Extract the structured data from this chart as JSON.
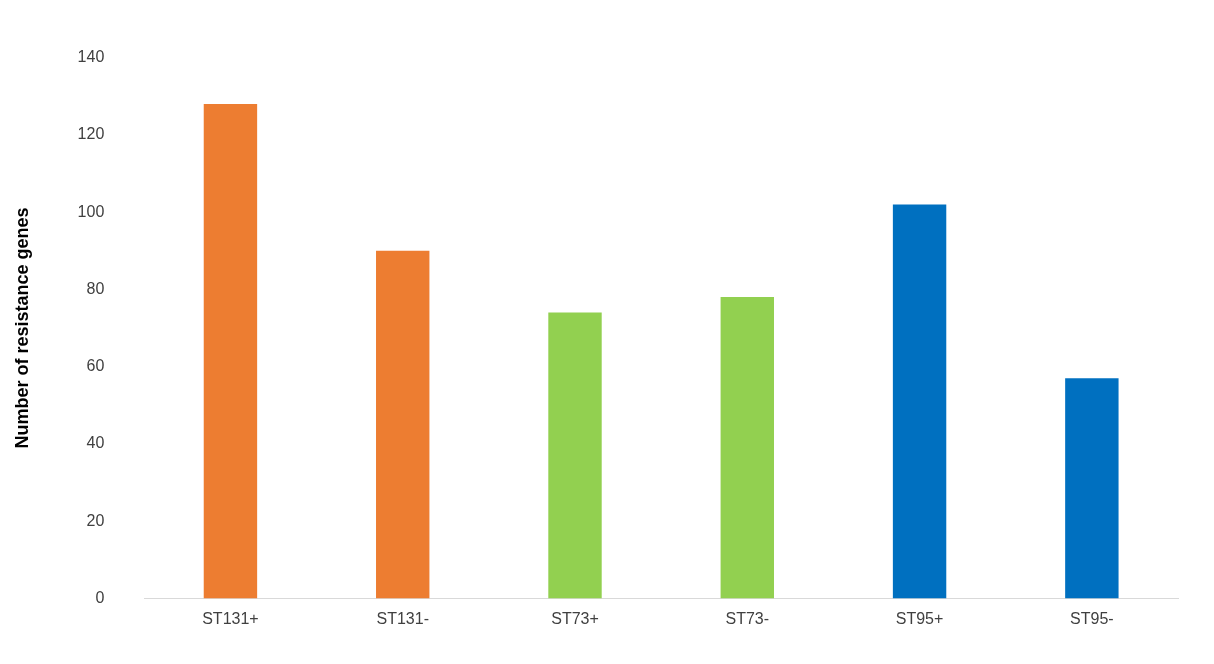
{
  "chart_data": {
    "type": "bar",
    "ylabel": "Number of resistance genes",
    "categories": [
      "ST131+",
      "ST131-",
      "ST73+",
      "ST73-",
      "ST95+",
      "ST95-"
    ],
    "values": [
      128,
      90,
      74,
      78,
      102,
      57
    ],
    "colors": [
      "#ed7d31",
      "#ed7d31",
      "#92d050",
      "#92d050",
      "#0070c0",
      "#0070c0"
    ],
    "ylim": [
      0,
      140
    ],
    "yticks": [
      0,
      20,
      40,
      60,
      80,
      100,
      120,
      140
    ],
    "grid": false,
    "legend": false
  }
}
